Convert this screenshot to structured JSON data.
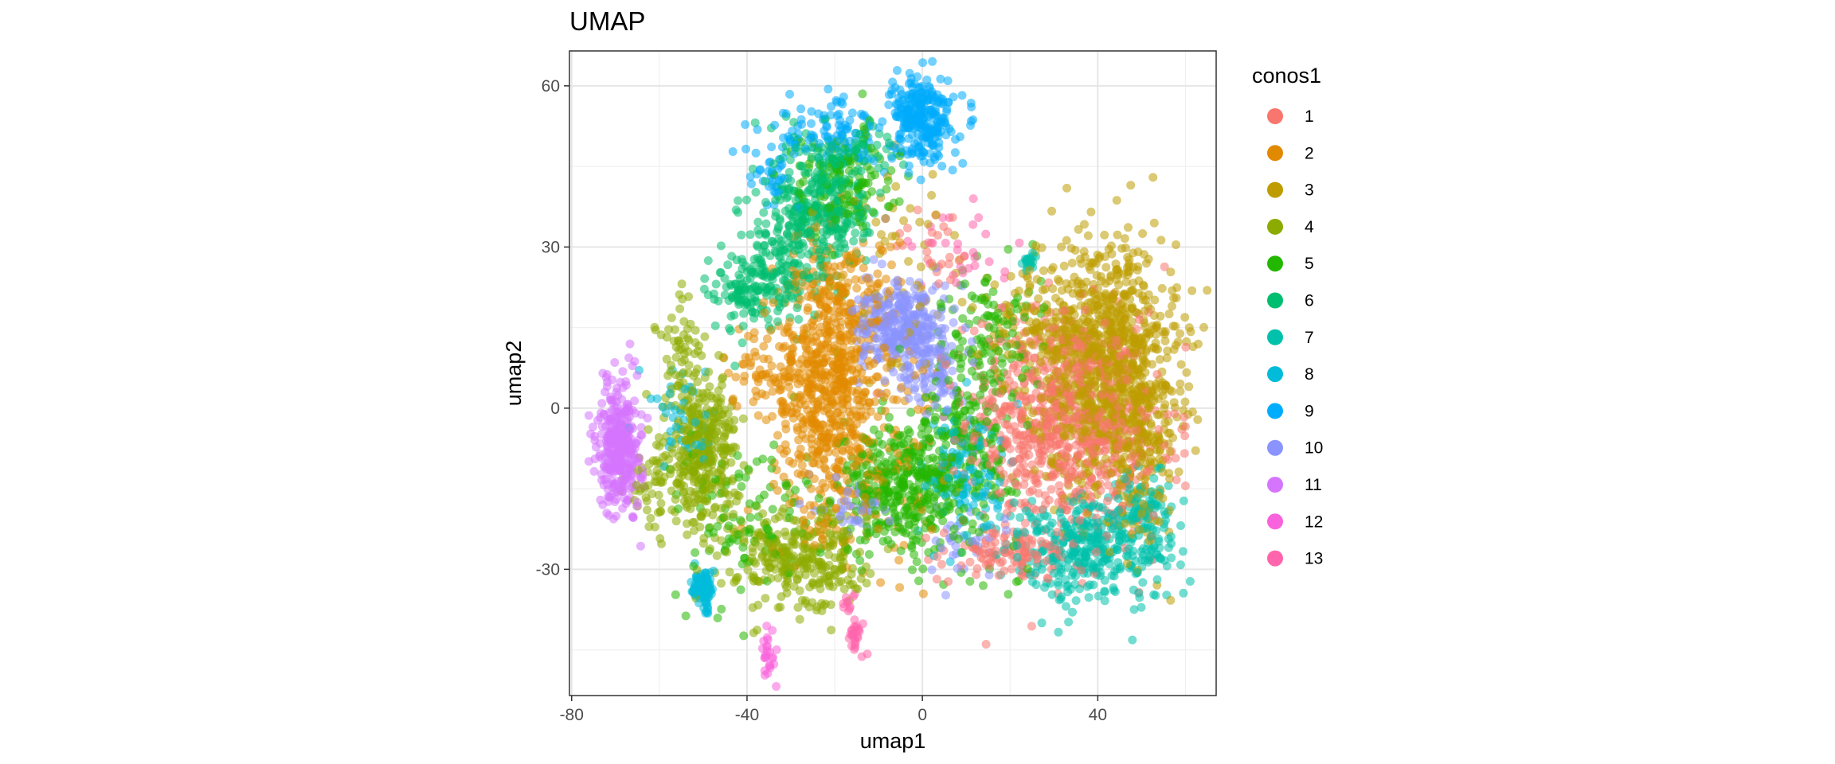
{
  "chart_data": {
    "type": "scatter",
    "title": "UMAP",
    "xlabel": "umap1",
    "ylabel": "umap2",
    "xlim": [
      -80.5,
      67
    ],
    "ylim": [
      -53.5,
      66.5
    ],
    "x_ticks": [
      "-80",
      "-40",
      "0",
      "40"
    ],
    "x_tick_values": [
      -80,
      -40,
      0,
      40
    ],
    "y_ticks": [
      "60",
      "30",
      "0",
      "-30"
    ],
    "y_tick_values": [
      60,
      30,
      0,
      -30
    ],
    "grid": true,
    "legend": {
      "title": "conos1",
      "placement": "right",
      "labels": [
        "1",
        "2",
        "3",
        "4",
        "5",
        "6",
        "7",
        "8",
        "9",
        "10",
        "11",
        "12",
        "13"
      ],
      "colors": [
        "#F8766D",
        "#E18A00",
        "#BE9C00",
        "#8CAB00",
        "#24B700",
        "#00BE70",
        "#00C1AB",
        "#00BBDA",
        "#00ACFC",
        "#8B93FF",
        "#D575FE",
        "#F962DD",
        "#FF65AC"
      ]
    },
    "point_opacity": 0.55,
    "series": [
      {
        "name": "1",
        "clusters": [
          {
            "cx": 30,
            "cy": -2,
            "sx": 10,
            "sy": 10,
            "n": 650
          },
          {
            "cx": 20,
            "cy": -27,
            "sx": 8,
            "sy": 2.5,
            "n": 120
          },
          {
            "cx": 42,
            "cy": -8,
            "sx": 8,
            "sy": 10,
            "n": 150
          },
          {
            "cx": 3,
            "cy": 30,
            "sx": 5,
            "sy": 4,
            "n": 25
          }
        ]
      },
      {
        "name": "2",
        "clusters": [
          {
            "cx": -22,
            "cy": 5,
            "sx": 6,
            "sy": 13,
            "n": 650
          },
          {
            "cx": -15,
            "cy": 20,
            "sx": 6,
            "sy": 6,
            "n": 80
          },
          {
            "cx": -10,
            "cy": -5,
            "sx": 7,
            "sy": 12,
            "n": 120
          },
          {
            "cx": -38,
            "cy": 8,
            "sx": 4,
            "sy": 4,
            "n": 40
          }
        ]
      },
      {
        "name": "3",
        "clusters": [
          {
            "cx": 42,
            "cy": 8,
            "sx": 8,
            "sy": 12,
            "n": 900
          },
          {
            "cx": 50,
            "cy": -5,
            "sx": 4,
            "sy": 9,
            "n": 200
          },
          {
            "cx": 25,
            "cy": 15,
            "sx": 6,
            "sy": 5,
            "n": 120
          },
          {
            "cx": -5,
            "cy": 25,
            "sx": 8,
            "sy": 10,
            "n": 60
          }
        ]
      },
      {
        "name": "4",
        "clusters": [
          {
            "cx": -50,
            "cy": -8,
            "sx": 4,
            "sy": 7,
            "n": 350
          },
          {
            "cx": -30,
            "cy": -28,
            "sx": 6,
            "sy": 5,
            "n": 220
          },
          {
            "cx": -20,
            "cy": -28,
            "sx": 4,
            "sy": 5,
            "n": 80
          },
          {
            "cx": -55,
            "cy": 10,
            "sx": 3,
            "sy": 6,
            "n": 60
          },
          {
            "cx": -60,
            "cy": -15,
            "sx": 4,
            "sy": 4,
            "n": 60
          }
        ]
      },
      {
        "name": "5",
        "clusters": [
          {
            "cx": -5,
            "cy": -15,
            "sx": 7,
            "sy": 6,
            "n": 350
          },
          {
            "cx": 10,
            "cy": -5,
            "sx": 6,
            "sy": 10,
            "n": 250
          },
          {
            "cx": -18,
            "cy": 42,
            "sx": 6,
            "sy": 5,
            "n": 120
          },
          {
            "cx": -40,
            "cy": -20,
            "sx": 8,
            "sy": 8,
            "n": 100
          },
          {
            "cx": 15,
            "cy": 15,
            "sx": 6,
            "sy": 6,
            "n": 80
          }
        ]
      },
      {
        "name": "6",
        "clusters": [
          {
            "cx": -22,
            "cy": 38,
            "sx": 5,
            "sy": 7,
            "n": 300
          },
          {
            "cx": -40,
            "cy": 22,
            "sx": 4,
            "sy": 4,
            "n": 120
          },
          {
            "cx": -32,
            "cy": 30,
            "sx": 5,
            "sy": 6,
            "n": 150
          },
          {
            "cx": -15,
            "cy": 48,
            "sx": 5,
            "sy": 2,
            "n": 40
          }
        ]
      },
      {
        "name": "7",
        "clusters": [
          {
            "cx": 38,
            "cy": -26,
            "sx": 10,
            "sy": 5,
            "n": 380
          },
          {
            "cx": 50,
            "cy": -20,
            "sx": 3,
            "sy": 5,
            "n": 80
          },
          {
            "cx": 24,
            "cy": 27,
            "sx": 0.8,
            "sy": 0.8,
            "n": 20
          }
        ]
      },
      {
        "name": "8",
        "clusters": [
          {
            "cx": -50,
            "cy": -33,
            "sx": 1.3,
            "sy": 1.6,
            "n": 80
          },
          {
            "cx": -49,
            "cy": -37,
            "sx": 0.6,
            "sy": 1.2,
            "n": 12
          },
          {
            "cx": 10,
            "cy": -12,
            "sx": 5,
            "sy": 6,
            "n": 120
          },
          {
            "cx": -55,
            "cy": -2,
            "sx": 4,
            "sy": 5,
            "n": 40
          }
        ]
      },
      {
        "name": "9",
        "clusters": [
          {
            "cx": 0,
            "cy": 54,
            "sx": 3.5,
            "sy": 4,
            "n": 280
          },
          {
            "cx": -22,
            "cy": 50,
            "sx": 8,
            "sy": 2.5,
            "n": 80
          },
          {
            "cx": -35,
            "cy": 43,
            "sx": 2.5,
            "sy": 2,
            "n": 30
          },
          {
            "cx": -20,
            "cy": 54,
            "sx": 5,
            "sy": 2,
            "n": 30
          }
        ]
      },
      {
        "name": "10",
        "clusters": [
          {
            "cx": -5,
            "cy": 15,
            "sx": 5,
            "sy": 4,
            "n": 300
          },
          {
            "cx": 2,
            "cy": 8,
            "sx": 3,
            "sy": 4,
            "n": 100
          },
          {
            "cx": -15,
            "cy": -18,
            "sx": 4,
            "sy": 3,
            "n": 40
          },
          {
            "cx": 10,
            "cy": -25,
            "sx": 5,
            "sy": 3,
            "n": 30
          }
        ]
      },
      {
        "name": "11",
        "clusters": [
          {
            "cx": -69,
            "cy": -7,
            "sx": 2.5,
            "sy": 6,
            "n": 350
          }
        ]
      },
      {
        "name": "12",
        "clusters": [
          {
            "cx": -35,
            "cy": -46,
            "sx": 0.8,
            "sy": 2.5,
            "n": 25
          }
        ]
      },
      {
        "name": "13",
        "clusters": [
          {
            "cx": -15,
            "cy": -42,
            "sx": 1,
            "sy": 1.5,
            "n": 25
          },
          {
            "cx": -17,
            "cy": -36,
            "sx": 1,
            "sy": 1,
            "n": 10
          },
          {
            "cx": 10,
            "cy": 28,
            "sx": 6,
            "sy": 6,
            "n": 30
          }
        ]
      }
    ]
  }
}
